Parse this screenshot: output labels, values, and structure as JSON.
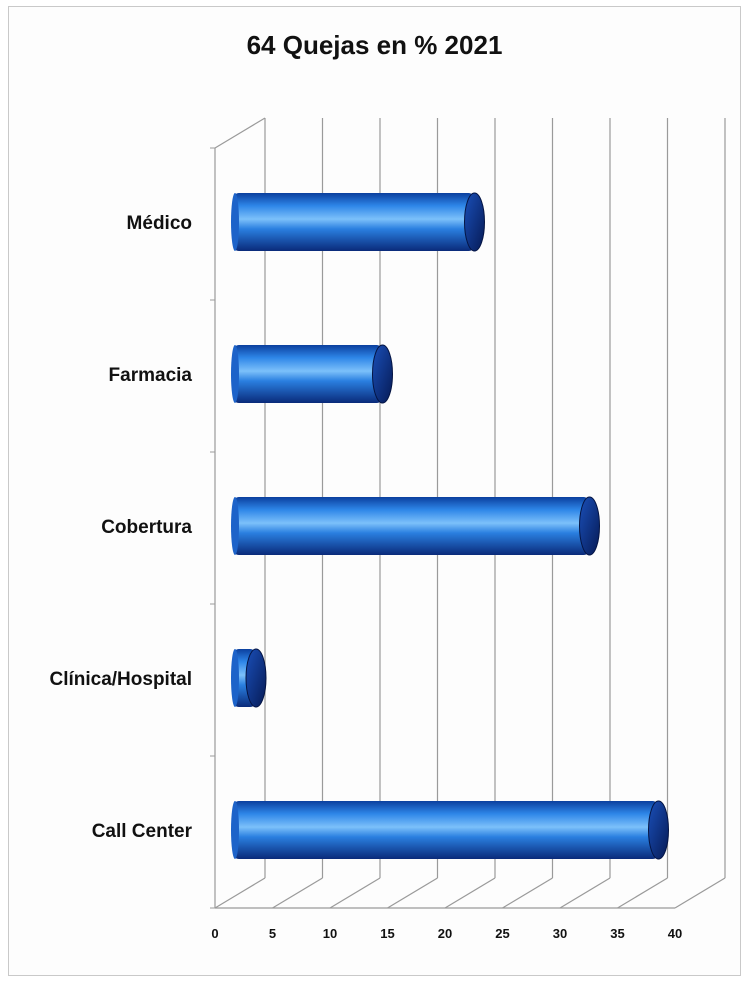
{
  "chart_data": {
    "type": "bar",
    "orientation": "horizontal",
    "style": "3d-cylinder",
    "title": "64 Quejas en % 2021",
    "categories": [
      "Médico",
      "Farmacia",
      "Cobertura",
      "Clínica/Hospital",
      "Call Center"
    ],
    "values": [
      21,
      13,
      31,
      2,
      37
    ],
    "xlim": [
      0,
      40
    ],
    "xticks": [
      "0",
      "5",
      "10",
      "15",
      "20",
      "25",
      "30",
      "35",
      "40"
    ],
    "grid": true,
    "legend": "none",
    "bar_color": "#1f6fd1",
    "bar_dark_color": "#0a2a7a",
    "bar_light_color": "#6fb0f5"
  }
}
